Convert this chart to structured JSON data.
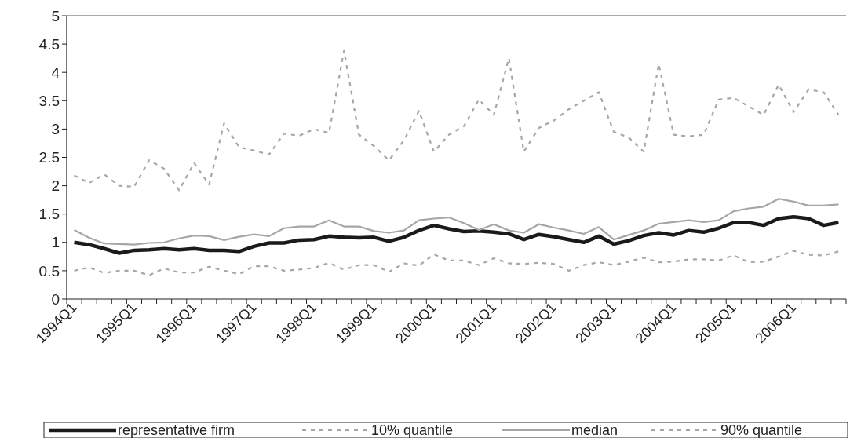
{
  "chart_data": {
    "type": "line",
    "categories": [
      "1994Q1",
      null,
      null,
      null,
      "1995Q1",
      null,
      null,
      null,
      "1996Q1",
      null,
      null,
      null,
      "1997Q1",
      null,
      null,
      null,
      "1998Q1",
      null,
      null,
      null,
      "1999Q1",
      null,
      null,
      null,
      "2000Q1",
      null,
      null,
      null,
      "2001Q1",
      null,
      null,
      null,
      "2002Q1",
      null,
      null,
      null,
      "2003Q1",
      null,
      null,
      null,
      "2004Q1",
      null,
      null,
      null,
      "2005Q1",
      null,
      null,
      null,
      "2006Q1",
      null,
      null,
      null
    ],
    "series": [
      {
        "name": "representative firm",
        "color": "#1a1a1a",
        "line_style": "solid",
        "values": [
          1.0,
          0.96,
          0.89,
          0.81,
          0.86,
          0.87,
          0.89,
          0.87,
          0.89,
          0.86,
          0.86,
          0.84,
          0.93,
          0.99,
          0.99,
          1.04,
          1.05,
          1.11,
          1.09,
          1.08,
          1.09,
          1.02,
          1.09,
          1.21,
          1.3,
          1.24,
          1.19,
          1.2,
          1.18,
          1.15,
          1.05,
          1.14,
          1.1,
          1.05,
          1.0,
          1.11,
          0.97,
          1.03,
          1.12,
          1.17,
          1.13,
          1.21,
          1.18,
          1.25,
          1.35,
          1.35,
          1.3,
          1.42,
          1.45,
          1.42,
          1.3,
          1.35
        ]
      },
      {
        "name": "10% quantile",
        "color": "#a6a6a6",
        "line_style": "dashed",
        "values": [
          0.5,
          0.56,
          0.46,
          0.5,
          0.5,
          0.42,
          0.54,
          0.47,
          0.47,
          0.57,
          0.5,
          0.44,
          0.58,
          0.58,
          0.5,
          0.52,
          0.55,
          0.64,
          0.52,
          0.6,
          0.6,
          0.48,
          0.63,
          0.59,
          0.79,
          0.68,
          0.68,
          0.6,
          0.72,
          0.63,
          0.62,
          0.64,
          0.62,
          0.5,
          0.6,
          0.65,
          0.6,
          0.66,
          0.73,
          0.65,
          0.66,
          0.7,
          0.7,
          0.68,
          0.77,
          0.65,
          0.66,
          0.75,
          0.85,
          0.78,
          0.77,
          0.84
        ]
      },
      {
        "name": "median",
        "color": "#a6a6a6",
        "line_style": "solid",
        "values": [
          1.22,
          1.08,
          0.98,
          0.97,
          0.96,
          0.99,
          1.0,
          1.07,
          1.12,
          1.11,
          1.04,
          1.1,
          1.14,
          1.11,
          1.25,
          1.28,
          1.28,
          1.39,
          1.28,
          1.28,
          1.2,
          1.17,
          1.21,
          1.39,
          1.42,
          1.44,
          1.34,
          1.22,
          1.32,
          1.21,
          1.17,
          1.32,
          1.26,
          1.21,
          1.15,
          1.27,
          1.05,
          1.13,
          1.21,
          1.33,
          1.36,
          1.39,
          1.36,
          1.39,
          1.55,
          1.6,
          1.63,
          1.77,
          1.72,
          1.65,
          1.65,
          1.67
        ]
      },
      {
        "name": "90% quantile",
        "color": "#a6a6a6",
        "line_style": "dashed",
        "values": [
          2.18,
          2.05,
          2.2,
          2.0,
          1.98,
          2.45,
          2.3,
          1.92,
          2.4,
          2.02,
          3.1,
          2.68,
          2.62,
          2.55,
          2.92,
          2.88,
          3.0,
          2.93,
          4.38,
          2.9,
          2.7,
          2.45,
          2.8,
          3.32,
          2.6,
          2.9,
          3.05,
          3.52,
          3.25,
          4.25,
          2.6,
          3.02,
          3.15,
          3.35,
          3.5,
          3.65,
          2.95,
          2.85,
          2.6,
          4.15,
          2.9,
          2.87,
          2.9,
          3.52,
          3.55,
          3.4,
          3.25,
          3.78,
          3.3,
          3.7,
          3.65,
          3.25
        ]
      }
    ],
    "ylim": [
      0,
      5
    ],
    "yticks": [
      0,
      0.5,
      1,
      1.5,
      2,
      2.5,
      3,
      3.5,
      4,
      4.5,
      5
    ],
    "grid": false,
    "legend": "bottom"
  }
}
